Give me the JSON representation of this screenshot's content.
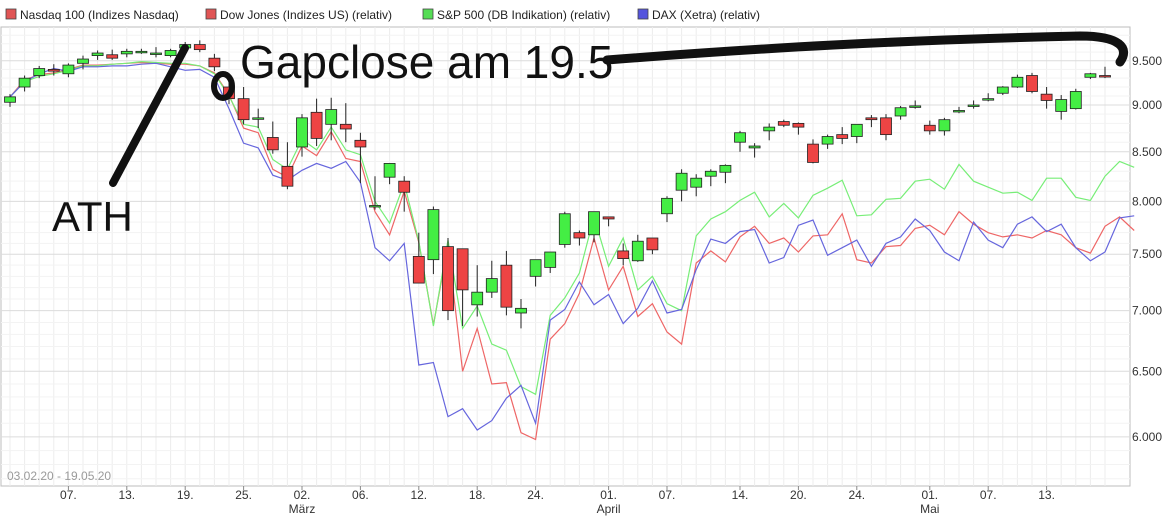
{
  "chart_data": {
    "type": "candlestick",
    "date_range_label": "03.02.20 - 19.05.20",
    "legend": [
      {
        "name": "Nasdaq 100 (Indizes Nasdaq)",
        "color": "#e05555"
      },
      {
        "name": "Dow Jones (Indizes US) (relativ)",
        "color": "#e05555"
      },
      {
        "name": "S&P 500 (DB Indikation) (relativ)",
        "color": "#55dd55"
      },
      {
        "name": "DAX (Xetra) (relativ)",
        "color": "#5555dd"
      }
    ],
    "legend_placement": "top",
    "y_axis": {
      "scale": "log",
      "ylim": [
        5650,
        9900
      ],
      "ticks": [
        "9.500",
        "9.000",
        "8.500",
        "8.000",
        "7.500",
        "7.000",
        "6.500",
        "6.000"
      ],
      "tick_values": [
        9500,
        9000,
        8500,
        8000,
        7500,
        7000,
        6500,
        6000
      ],
      "position": "right"
    },
    "x_axis": {
      "day_ticks": [
        "07.",
        "13.",
        "19.",
        "25.",
        "02.",
        "06.",
        "12.",
        "18.",
        "24.",
        "01.",
        "07.",
        "14.",
        "20.",
        "24.",
        "01.",
        "07.",
        "13."
      ],
      "day_tick_index": [
        4,
        8,
        12,
        16,
        20,
        24,
        28,
        32,
        36,
        41,
        45,
        50,
        54,
        58,
        63,
        67,
        71
      ],
      "months": [
        "März",
        "April",
        "Mai"
      ],
      "month_index": [
        20,
        41,
        63
      ]
    },
    "grid": true,
    "candle_colors": {
      "up": "#44ee44",
      "down": "#ee4444",
      "outline": "#222222"
    },
    "candles": [
      [
        9030,
        9120,
        8980,
        9090
      ],
      [
        9200,
        9330,
        9150,
        9300
      ],
      [
        9330,
        9440,
        9300,
        9410
      ],
      [
        9400,
        9460,
        9330,
        9380
      ],
      [
        9350,
        9470,
        9310,
        9450
      ],
      [
        9470,
        9560,
        9400,
        9520
      ],
      [
        9560,
        9620,
        9510,
        9590
      ],
      [
        9570,
        9630,
        9510,
        9530
      ],
      [
        9580,
        9640,
        9540,
        9610
      ],
      [
        9600,
        9640,
        9580,
        9610
      ],
      [
        9580,
        9660,
        9540,
        9590
      ],
      [
        9560,
        9640,
        9540,
        9620
      ],
      [
        9650,
        9720,
        9620,
        9690
      ],
      [
        9690,
        9740,
        9600,
        9630
      ],
      [
        9530,
        9580,
        9380,
        9430
      ],
      [
        9200,
        9260,
        9010,
        9070
      ],
      [
        9070,
        9200,
        8790,
        8840
      ],
      [
        8860,
        8960,
        8750,
        8860
      ],
      [
        8650,
        8820,
        8480,
        8520
      ],
      [
        8350,
        8600,
        8120,
        8150
      ],
      [
        8550,
        8900,
        8450,
        8860
      ],
      [
        8920,
        9070,
        8560,
        8640
      ],
      [
        8790,
        9080,
        8620,
        8950
      ],
      [
        8790,
        9020,
        8600,
        8740
      ],
      [
        8620,
        8700,
        8180,
        8550
      ],
      [
        7950,
        8250,
        7920,
        7960
      ],
      [
        8240,
        8370,
        8170,
        8380
      ],
      [
        8200,
        8250,
        7900,
        8090
      ],
      [
        7480,
        7700,
        7260,
        7240
      ],
      [
        7450,
        7950,
        7320,
        7920
      ],
      [
        7570,
        7650,
        6920,
        7000
      ],
      [
        7550,
        7550,
        6870,
        7180
      ],
      [
        7050,
        7400,
        6950,
        7160
      ],
      [
        7160,
        7440,
        7110,
        7280
      ],
      [
        7400,
        7530,
        6960,
        7030
      ],
      [
        6980,
        7100,
        6850,
        7020
      ],
      [
        7300,
        7450,
        7210,
        7450
      ],
      [
        7380,
        7510,
        7330,
        7520
      ],
      [
        7590,
        7900,
        7560,
        7880
      ],
      [
        7700,
        7720,
        7580,
        7650
      ],
      [
        7680,
        7900,
        7610,
        7900
      ],
      [
        7850,
        7850,
        7760,
        7830
      ],
      [
        7530,
        7600,
        7400,
        7460
      ],
      [
        7440,
        7680,
        7430,
        7620
      ],
      [
        7650,
        7650,
        7500,
        7540
      ],
      [
        7880,
        8050,
        7800,
        8030
      ],
      [
        8110,
        8320,
        8000,
        8280
      ],
      [
        8140,
        8270,
        8050,
        8230
      ],
      [
        8250,
        8320,
        8150,
        8300
      ],
      [
        8290,
        8370,
        8180,
        8360
      ],
      [
        8600,
        8720,
        8500,
        8700
      ],
      [
        8540,
        8590,
        8440,
        8560
      ],
      [
        8720,
        8800,
        8620,
        8760
      ],
      [
        8820,
        8840,
        8760,
        8780
      ],
      [
        8800,
        8810,
        8680,
        8760
      ],
      [
        8580,
        8630,
        8380,
        8390
      ],
      [
        8580,
        8680,
        8530,
        8660
      ],
      [
        8680,
        8760,
        8580,
        8640
      ],
      [
        8660,
        8790,
        8590,
        8790
      ],
      [
        8860,
        8890,
        8760,
        8840
      ],
      [
        8860,
        8900,
        8620,
        8680
      ],
      [
        8880,
        8990,
        8840,
        8970
      ],
      [
        8980,
        9050,
        8960,
        8990
      ],
      [
        8780,
        8830,
        8680,
        8720
      ],
      [
        8720,
        8860,
        8670,
        8840
      ],
      [
        8940,
        8980,
        8910,
        8940
      ],
      [
        8990,
        9050,
        8960,
        9000
      ],
      [
        9070,
        9130,
        9040,
        9070
      ],
      [
        9130,
        9210,
        9110,
        9200
      ],
      [
        9200,
        9340,
        9190,
        9310
      ],
      [
        9330,
        9360,
        9130,
        9150
      ],
      [
        9120,
        9200,
        8960,
        9050
      ],
      [
        8930,
        9110,
        8840,
        9060
      ],
      [
        8960,
        9180,
        8950,
        9150
      ],
      [
        9310,
        9360,
        9290,
        9350
      ],
      [
        9330,
        9430,
        9300,
        9320
      ]
    ],
    "series": [
      {
        "name": "Dow Jones (Indizes US) (relativ)",
        "color": "#ee6666",
        "values": [
          9090,
          9280,
          9340,
          9360,
          9400,
          9450,
          9450,
          9460,
          9470,
          9480,
          9470,
          9460,
          9460,
          9440,
          9360,
          9110,
          8750,
          8700,
          8320,
          8240,
          8560,
          8460,
          8710,
          8430,
          8400,
          7900,
          7680,
          8100,
          7610,
          6880,
          7580,
          6500,
          6850,
          6400,
          6410,
          6030,
          5980,
          6760,
          6890,
          7150,
          7650,
          7180,
          7390,
          6950,
          7060,
          6820,
          6720,
          7420,
          7530,
          7430,
          7660,
          7760,
          7600,
          7650,
          7520,
          7670,
          7680,
          7880,
          7450,
          7420,
          7570,
          7580,
          7740,
          7770,
          7680,
          7900,
          7780,
          7700,
          7660,
          7680,
          7650,
          7720,
          7680,
          7560,
          7510,
          7760,
          7850,
          7720
        ]
      },
      {
        "name": "S&P 500 (DB Indikation) (relativ)",
        "color": "#77ee77",
        "values": [
          9090,
          9260,
          9320,
          9350,
          9390,
          9440,
          9440,
          9460,
          9470,
          9490,
          9480,
          9470,
          9470,
          9440,
          9350,
          9100,
          8790,
          8760,
          8420,
          8320,
          8630,
          8520,
          8760,
          8520,
          8470,
          8000,
          7790,
          8180,
          7620,
          6870,
          7630,
          6850,
          7040,
          6720,
          6670,
          6380,
          6320,
          6960,
          7110,
          7330,
          7850,
          7390,
          7650,
          7180,
          7300,
          7060,
          7000,
          7670,
          7830,
          7900,
          8010,
          8090,
          7850,
          7980,
          7840,
          8060,
          8130,
          8210,
          7860,
          7870,
          8020,
          8030,
          8200,
          8220,
          8120,
          8370,
          8200,
          8140,
          8080,
          8090,
          8010,
          8230,
          8230,
          8040,
          8010,
          8250,
          8400,
          8340
        ]
      },
      {
        "name": "DAX (Xetra) (relativ)",
        "color": "#6666dd",
        "values": [
          9090,
          9260,
          9350,
          9410,
          9380,
          9430,
          9430,
          9440,
          9440,
          9460,
          9470,
          9430,
          9390,
          9400,
          9310,
          8960,
          8590,
          8540,
          8260,
          8210,
          8310,
          8380,
          8330,
          8400,
          8190,
          7560,
          7440,
          7600,
          6550,
          6570,
          6150,
          6210,
          6050,
          6120,
          6290,
          6390,
          6100,
          6920,
          7010,
          7250,
          7050,
          7140,
          6890,
          7020,
          7260,
          6980,
          7010,
          7360,
          7640,
          7600,
          7710,
          7730,
          7420,
          7470,
          7770,
          7820,
          7490,
          7560,
          7630,
          7390,
          7600,
          7660,
          7830,
          7720,
          7520,
          7440,
          7800,
          7630,
          7560,
          7780,
          7850,
          7710,
          7780,
          7560,
          7440,
          7520,
          7840,
          7860
        ]
      }
    ],
    "annotations": [
      "Gapclose am 19.5",
      "ATH"
    ]
  }
}
